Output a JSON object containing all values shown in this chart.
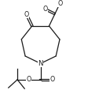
{
  "bg_color": "#ffffff",
  "line_color": "#1a1a1a",
  "lw": 0.9,
  "fs": 5.2,
  "fig_w": 1.26,
  "fig_h": 1.19,
  "dpi": 100,
  "xlim": [
    0.0,
    1.0
  ],
  "ylim": [
    0.0,
    1.0
  ]
}
